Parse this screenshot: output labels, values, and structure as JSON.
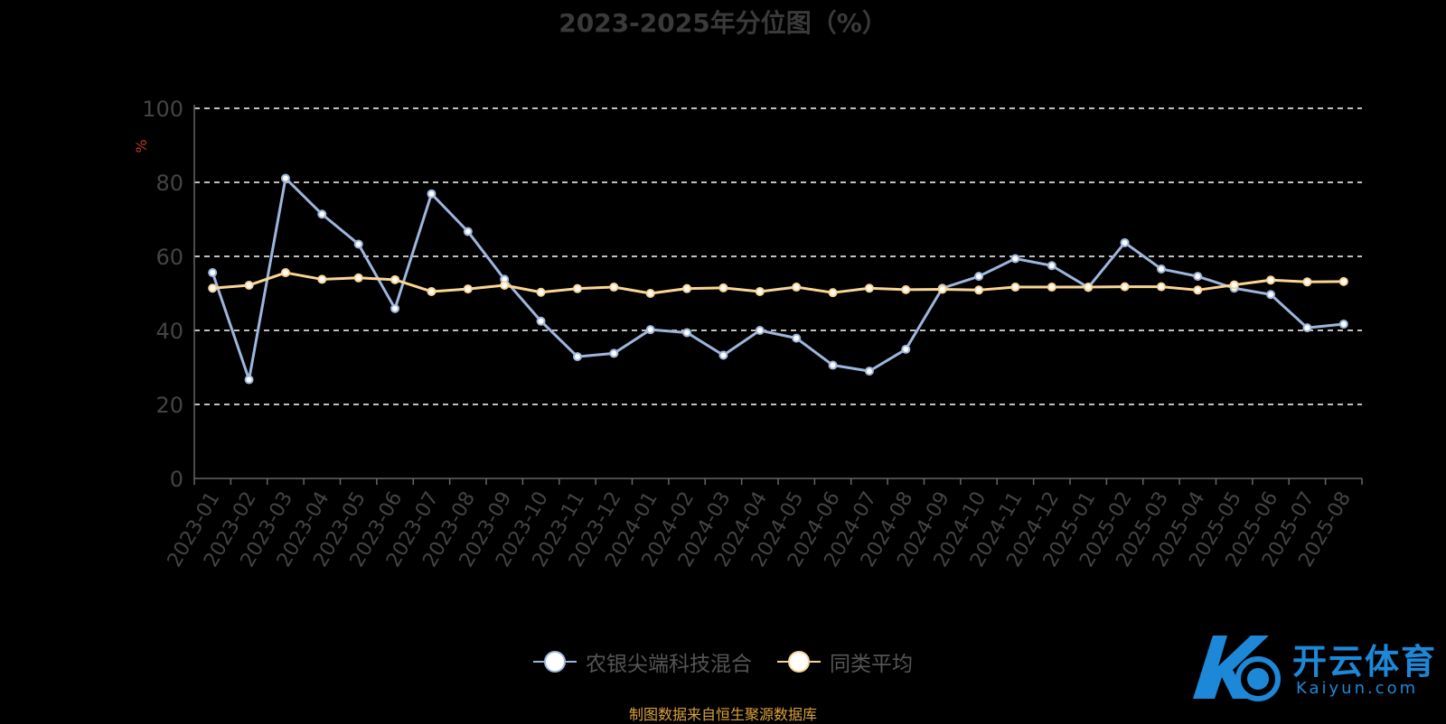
{
  "chart_data": {
    "type": "line",
    "title": "2023-2025年分位图（%）",
    "ylabel": "%",
    "ylim": [
      0,
      100
    ],
    "yticks": [
      0,
      20,
      40,
      60,
      80,
      100
    ],
    "grid": true,
    "legend_position": "bottom",
    "categories": [
      "2023-01",
      "2023-02",
      "2023-03",
      "2023-04",
      "2023-05",
      "2023-06",
      "2023-07",
      "2023-08",
      "2023-09",
      "2023-10",
      "2023-11",
      "2023-12",
      "2024-01",
      "2024-02",
      "2024-03",
      "2024-04",
      "2024-05",
      "2024-06",
      "2024-07",
      "2024-08",
      "2024-09",
      "2024-10",
      "2024-11",
      "2024-12",
      "2025-01",
      "2025-02",
      "2025-03",
      "2025-04",
      "2025-05",
      "2025-06",
      "2025-07",
      "2025-08"
    ],
    "series": [
      {
        "name": "农银尖端科技混合",
        "color": "#9db6dd",
        "values": [
          55.6,
          26.7,
          81.1,
          71.4,
          63.3,
          45.9,
          76.9,
          66.7,
          53.8,
          42.5,
          32.9,
          33.8,
          40.2,
          39.4,
          33.3,
          40.0,
          37.9,
          30.6,
          29.0,
          34.9,
          51.4,
          54.6,
          59.4,
          57.5,
          51.6,
          63.7,
          56.6,
          54.6,
          51.4,
          49.7,
          40.7,
          41.7
        ]
      },
      {
        "name": "同类平均",
        "color": "#fbd594",
        "values": [
          51.4,
          52.2,
          55.6,
          53.8,
          54.2,
          53.7,
          50.5,
          51.2,
          52.2,
          50.3,
          51.3,
          51.7,
          50.0,
          51.3,
          51.5,
          50.5,
          51.7,
          50.2,
          51.4,
          51.0,
          51.1,
          50.9,
          51.7,
          51.7,
          51.7,
          51.8,
          51.8,
          50.9,
          52.3,
          53.6,
          53.1,
          53.2
        ]
      }
    ]
  },
  "source_note": "制图数据来自恒生聚源数据库",
  "watermark": {
    "name": "开云体育",
    "domain": "Kaiyun.com",
    "color": "#1e88d8"
  }
}
